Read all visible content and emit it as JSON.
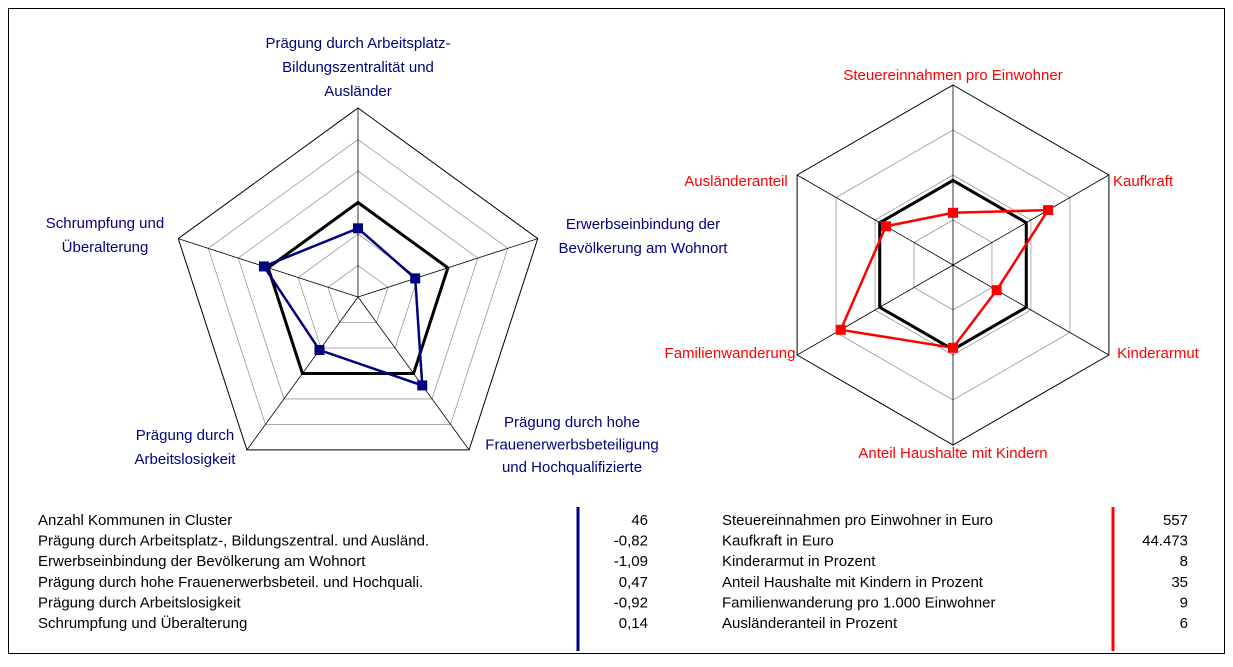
{
  "chart_data": [
    {
      "type": "radar",
      "axes": [
        [
          "Prägung durch Arbeitsplatz-",
          "Bildungszentralität und",
          "Ausländer"
        ],
        [
          "Erwerbseinbindung der",
          "Bevölkerung am Wohnort"
        ],
        [
          "Prägung durch hohe",
          "Frauenerwerbsbeteiligung",
          "und Hochqualifizierte"
        ],
        [
          "Prägung durch",
          "Arbeitslosigkeit"
        ],
        [
          "Schrumpfung und",
          "Überalterung"
        ]
      ],
      "label_color": "#000080",
      "rlim": [
        -3,
        3
      ],
      "rticks": [
        -2,
        -1,
        0,
        1,
        2,
        3
      ],
      "series": [
        {
          "color": "#000000",
          "values": [
            0,
            0,
            0,
            0,
            0
          ]
        },
        {
          "color": "#000080",
          "values": [
            -0.82,
            -1.09,
            0.47,
            -0.92,
            0.14
          ]
        }
      ]
    },
    {
      "type": "radar",
      "axes": [
        [
          "Steuereinnahmen pro Einwohner"
        ],
        [
          "Kaufkraft"
        ],
        [
          "Kinderarmut"
        ],
        [
          "Anteil Haushalte mit Kindern"
        ],
        [
          "Familienwanderung"
        ],
        [
          "Ausländeranteil"
        ]
      ],
      "label_color": "#ff0000",
      "rlim": [
        0,
        100
      ],
      "rticks": [
        25,
        50,
        75,
        100
      ],
      "series": [
        {
          "color": "#000000",
          "values": [
            47,
            47,
            47,
            47,
            47,
            47
          ]
        },
        {
          "color": "#ff0000",
          "values": [
            29,
            61,
            28,
            46,
            72,
            43
          ]
        }
      ]
    }
  ],
  "tables": [
    {
      "color": "#000080",
      "rows": [
        {
          "label": "Anzahl Kommunen in Cluster",
          "value": "46"
        },
        {
          "label": "Prägung durch Arbeitsplatz-, Bildungszentral. und Ausländ.",
          "value": "-0,82"
        },
        {
          "label": "Erwerbseinbindung der Bevölkerung am Wohnort",
          "value": "-1,09"
        },
        {
          "label": "Prägung durch hohe Frauenerwerbsbeteil. und Hochquali.",
          "value": "0,47"
        },
        {
          "label": "Prägung durch Arbeitslosigkeit",
          "value": "-0,92"
        },
        {
          "label": "Schrumpfung und Überalterung",
          "value": "0,14"
        }
      ]
    },
    {
      "color": "#ff0000",
      "rows": [
        {
          "label": "Steuereinnahmen pro Einwohner in Euro",
          "value": "557"
        },
        {
          "label": "Kaufkraft in Euro",
          "value": "44.473"
        },
        {
          "label": "Kinderarmut in Prozent",
          "value": "8"
        },
        {
          "label": "Anteil Haushalte mit Kindern in Prozent",
          "value": "35"
        },
        {
          "label": "Familienwanderung pro 1.000 Einwohner",
          "value": "9"
        },
        {
          "label": "Ausländeranteil in Prozent",
          "value": "6"
        }
      ]
    }
  ]
}
